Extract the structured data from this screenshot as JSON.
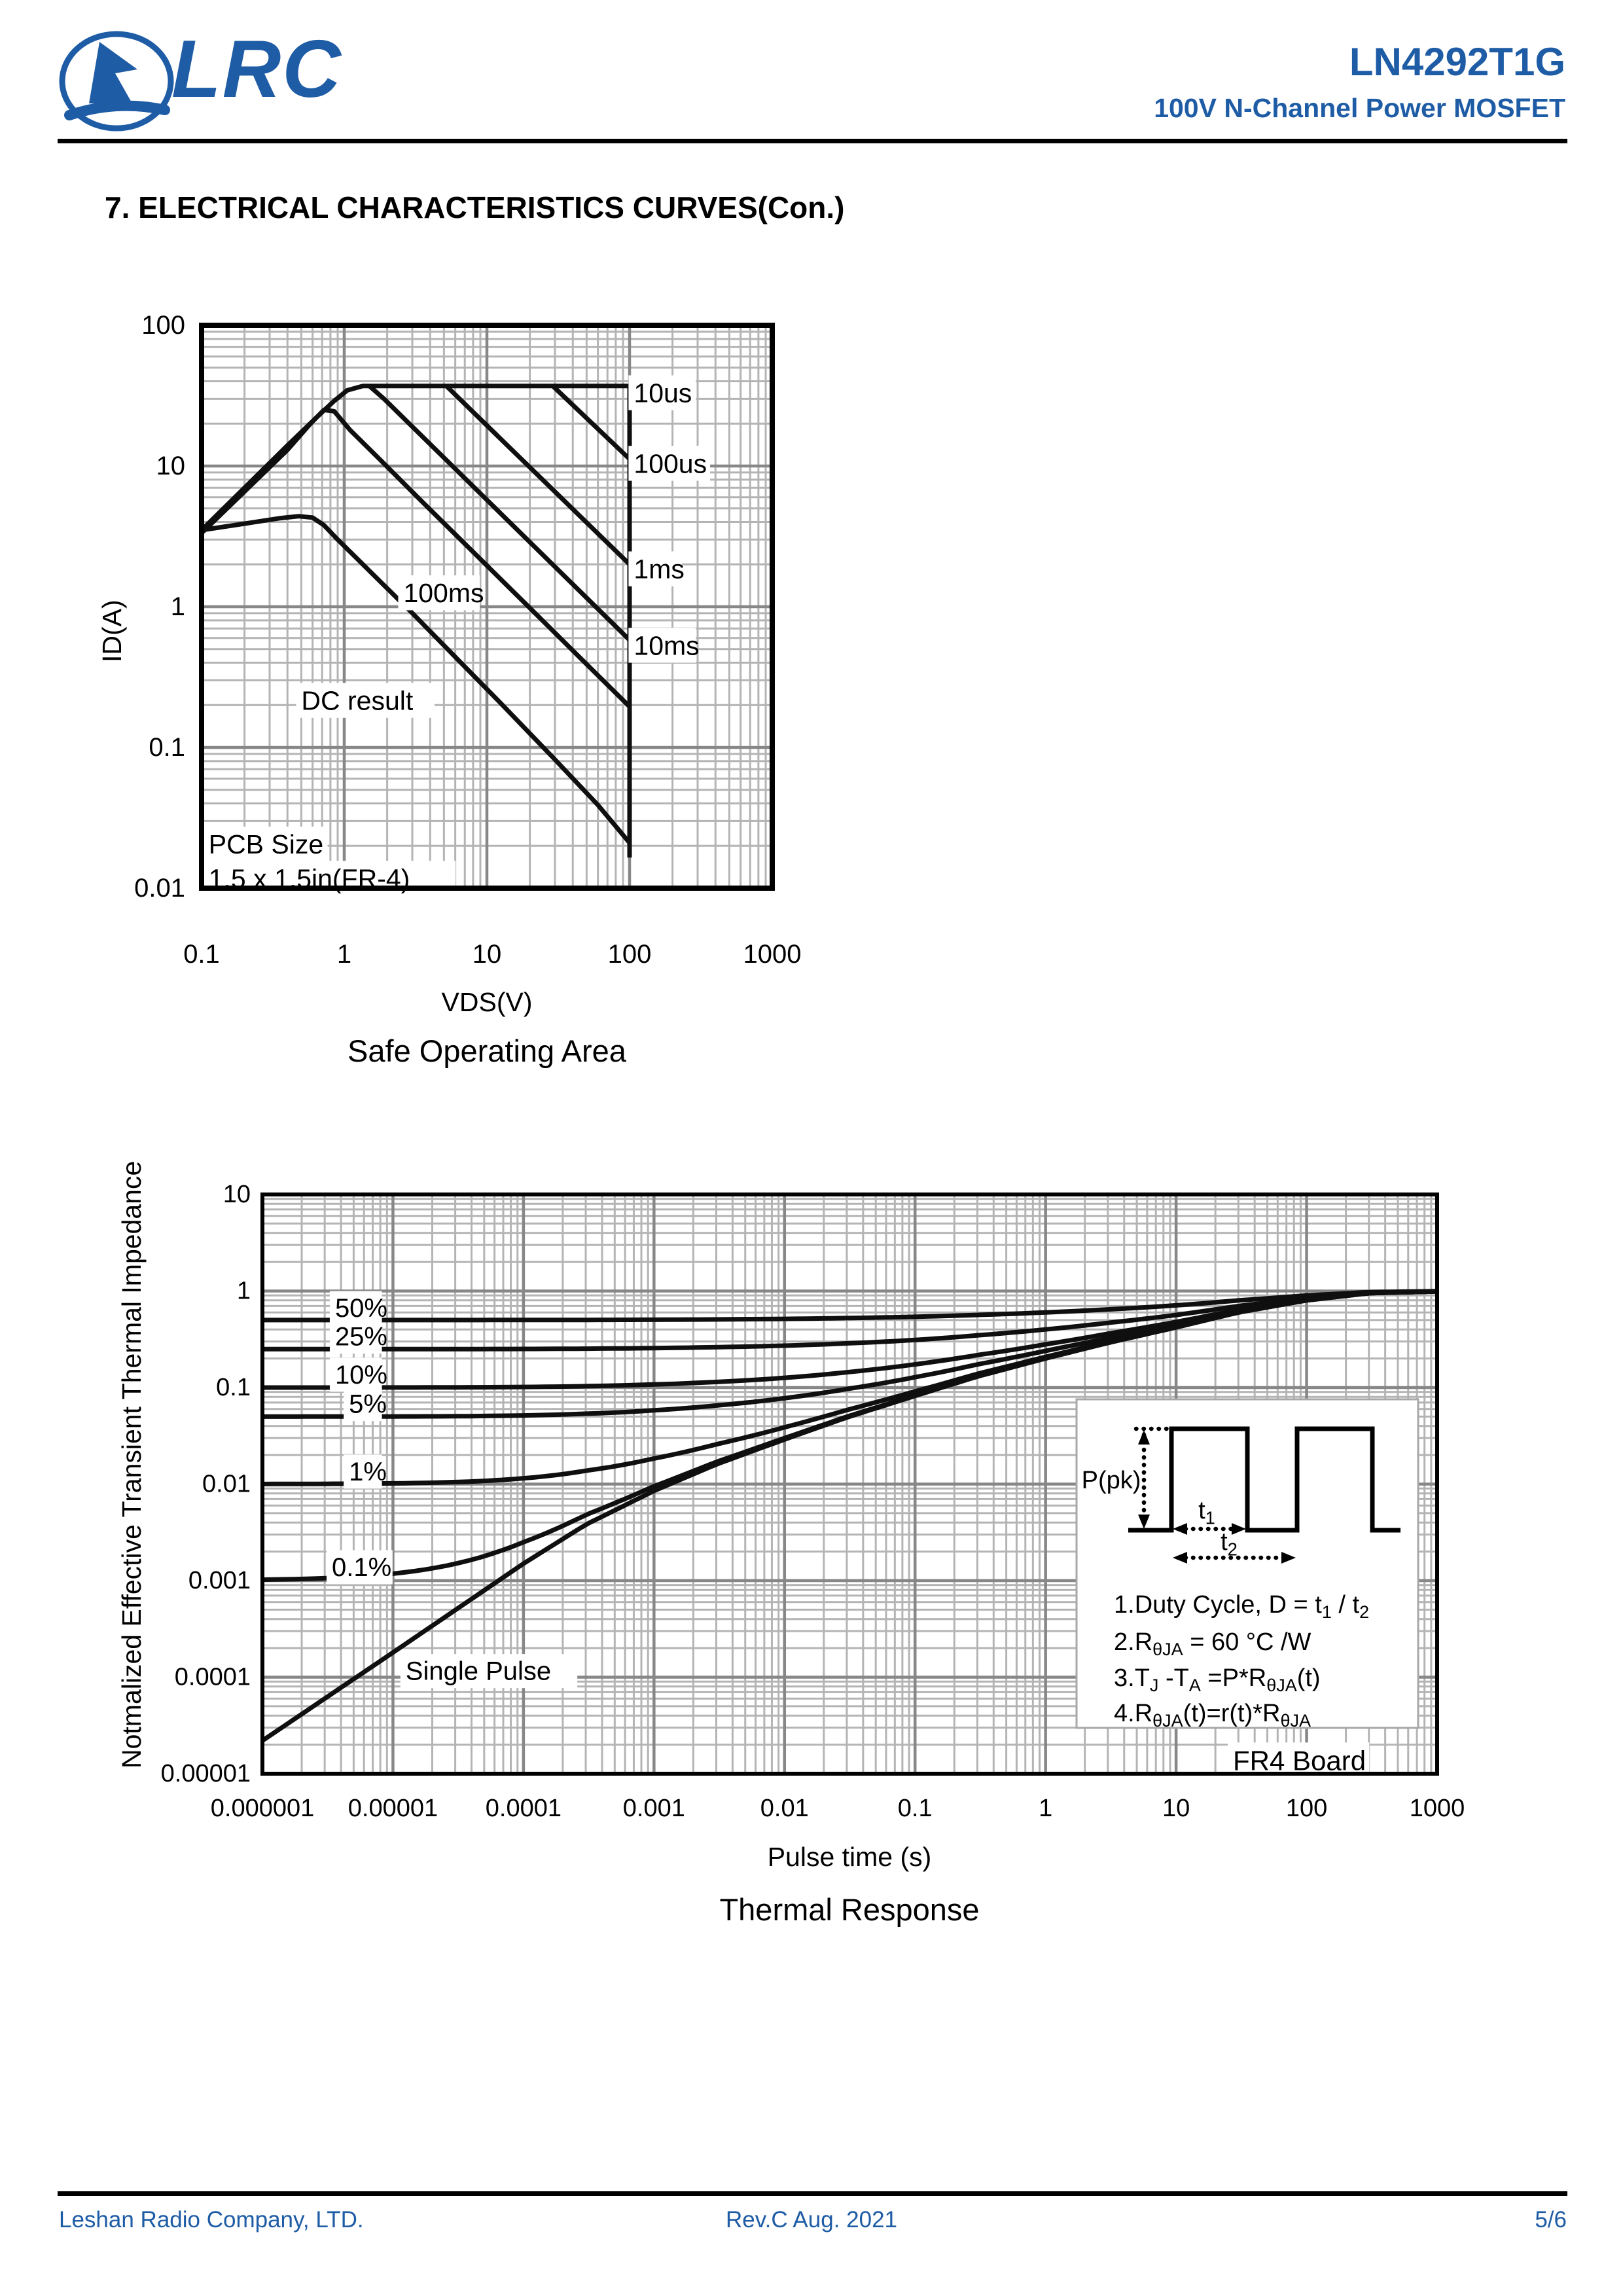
{
  "header": {
    "logo_text": "LRC",
    "part_number": "LN4292T1G",
    "subtitle": "100V N-Channel Power MOSFET"
  },
  "section_title": "7. ELECTRICAL CHARACTERISTICS CURVES(Con.)",
  "colors": {
    "brand_blue": "#1e5ca6",
    "grid_minor": "#b4b4b4",
    "grid_major": "#878787",
    "curve_black": "#0f0f0f"
  },
  "chart_data": [
    {
      "type": "line",
      "title": "Safe Operating Area",
      "xlabel": "VDS(V)",
      "ylabel": "ID(A)",
      "x_scale": "log",
      "y_scale": "log",
      "xlim": [
        0.1,
        1000
      ],
      "ylim": [
        0.01,
        100
      ],
      "x_ticks": [
        "0.1",
        "1",
        "10",
        "100",
        "1000"
      ],
      "y_ticks": [
        "100",
        "10",
        "1",
        "0.1",
        "0.01"
      ],
      "grid": true,
      "series": [
        {
          "name": "10us limit envelope",
          "points": [
            [
              0.1,
              3.5
            ],
            [
              0.4,
              14
            ],
            [
              0.65,
              22.5
            ],
            [
              0.85,
              29
            ],
            [
              1.05,
              34.5
            ],
            [
              1.35,
              37
            ],
            [
              2,
              37
            ],
            [
              100,
              37
            ],
            [
              100,
              0.0165
            ]
          ]
        },
        {
          "name": "100us",
          "points": [
            [
              29,
              37
            ],
            [
              100,
              11.2
            ]
          ]
        },
        {
          "name": "1ms",
          "points": [
            [
              5.2,
              37
            ],
            [
              100,
              2.0
            ]
          ]
        },
        {
          "name": "10ms",
          "points": [
            [
              1.5,
              37
            ],
            [
              1.9,
              30
            ],
            [
              100,
              0.58
            ]
          ]
        },
        {
          "name": "100ms",
          "points": [
            [
              0.102,
              3.4
            ],
            [
              0.4,
              13
            ],
            [
              0.58,
              20
            ],
            [
              0.72,
              25
            ],
            [
              0.85,
              24.5
            ],
            [
              1.1,
              18
            ],
            [
              1.8,
              11
            ],
            [
              3.5,
              5.6
            ],
            [
              8,
              2.45
            ],
            [
              20,
              0.98
            ],
            [
              50,
              0.39
            ],
            [
              100,
              0.195
            ]
          ]
        },
        {
          "name": "DC result",
          "points": [
            [
              0.1,
              3.5
            ],
            [
              0.22,
              3.95
            ],
            [
              0.35,
              4.25
            ],
            [
              0.48,
              4.4
            ],
            [
              0.6,
              4.3
            ],
            [
              0.72,
              3.8
            ],
            [
              0.9,
              3.0
            ],
            [
              1.2,
              2.25
            ],
            [
              1.8,
              1.5
            ],
            [
              3,
              0.9
            ],
            [
              6,
              0.44
            ],
            [
              12,
              0.215
            ],
            [
              30,
              0.082
            ],
            [
              60,
              0.039
            ],
            [
              100,
              0.021
            ]
          ]
        }
      ],
      "curve_labels": [
        {
          "text": "10us",
          "x": 107,
          "y": 33
        },
        {
          "text": "100us",
          "x": 107,
          "y": 10.4
        },
        {
          "text": "1ms",
          "x": 107,
          "y": 1.85
        },
        {
          "text": "10ms",
          "x": 107,
          "y": 0.53
        },
        {
          "text": "100ms",
          "x": 2.6,
          "y": 1.25
        },
        {
          "text": "DC result",
          "x": 0.5,
          "y": 0.215
        }
      ],
      "annotations": [
        {
          "text": "PCB Size",
          "x": 0.112,
          "y": 0.0205
        },
        {
          "text": "1.5 x 1.5in(FR-4)",
          "x": 0.112,
          "y": 0.0117
        }
      ]
    },
    {
      "type": "line",
      "title": "Thermal Response",
      "xlabel": "Pulse time (s)",
      "ylabel": "Notmalized Effective Transient Thermal Impedance",
      "x_scale": "log",
      "y_scale": "log",
      "xlim": [
        1e-06,
        1000
      ],
      "ylim": [
        1e-05,
        10
      ],
      "x_ticks": [
        "0.000001",
        "0.00001",
        "0.0001",
        "0.001",
        "0.01",
        "0.1",
        "1",
        "10",
        "100",
        "1000"
      ],
      "y_ticks": [
        "10",
        "1",
        "0.1",
        "0.01",
        "0.001",
        "0.0001",
        "0.00001"
      ],
      "grid": true,
      "duty_cycles": [
        0.5,
        0.25,
        0.1,
        0.05,
        0.01,
        0.001
      ],
      "single_pulse_points": [
        [
          1e-06,
          2.2e-05
        ],
        [
          1e-05,
          0.00018
        ],
        [
          0.0001,
          0.0015
        ],
        [
          0.0003,
          0.0038
        ],
        [
          0.001,
          0.0085
        ],
        [
          0.003,
          0.016
        ],
        [
          0.01,
          0.029
        ],
        [
          0.03,
          0.049
        ],
        [
          0.1,
          0.082
        ],
        [
          0.3,
          0.13
        ],
        [
          1,
          0.2
        ],
        [
          3,
          0.29
        ],
        [
          10,
          0.42
        ],
        [
          30,
          0.6
        ],
        [
          100,
          0.8
        ],
        [
          300,
          0.95
        ],
        [
          1000,
          0.99
        ]
      ],
      "curve_labels": [
        {
          "text": "50%",
          "t": 3.6e-06,
          "r": 0.66
        },
        {
          "text": "25%",
          "t": 3.6e-06,
          "r": 0.335
        },
        {
          "text": "10%",
          "t": 3.6e-06,
          "r": 0.135
        },
        {
          "text": "5%",
          "t": 4.6e-06,
          "r": 0.067
        },
        {
          "text": "1%",
          "t": 4.6e-06,
          "r": 0.0134
        },
        {
          "text": "0.1%",
          "t": 3.4e-06,
          "r": 0.00137
        },
        {
          "text": "Single Pulse",
          "t": 1.25e-05,
          "r": 0.000115
        }
      ],
      "board_label": "FR4 Board",
      "inset": {
        "p_pk_label": "P(pk)",
        "t1_label": {
          "base": "t",
          "sub": "1"
        },
        "t2_label": {
          "base": "t",
          "sub": "2"
        },
        "notes": [
          {
            "segments": [
              {
                "text": "1.Duty Cycle, D = t"
              },
              {
                "text": "1",
                "style": "sub"
              },
              {
                "text": " / t"
              },
              {
                "text": "2",
                "style": "sub"
              }
            ]
          },
          {
            "segments": [
              {
                "text": "2.R"
              },
              {
                "text": "θJA",
                "style": "sub"
              },
              {
                "text": " = 60 °C /W"
              }
            ]
          },
          {
            "segments": [
              {
                "text": "3.T"
              },
              {
                "text": "J",
                "style": "sub"
              },
              {
                "text": " -T"
              },
              {
                "text": "A",
                "style": "sub"
              },
              {
                "text": " =P*R"
              },
              {
                "text": "θJA",
                "style": "sub"
              },
              {
                "text": "(t)"
              }
            ]
          },
          {
            "segments": [
              {
                "text": "4.R"
              },
              {
                "text": "θJA",
                "style": "sub"
              },
              {
                "text": "(t)=r(t)*R"
              },
              {
                "text": "θJA",
                "style": "sub"
              }
            ]
          }
        ]
      }
    }
  ],
  "footer": {
    "company": "Leshan Radio Company, LTD.",
    "revision": "Rev.C   Aug.  2021",
    "page": "5/6"
  }
}
